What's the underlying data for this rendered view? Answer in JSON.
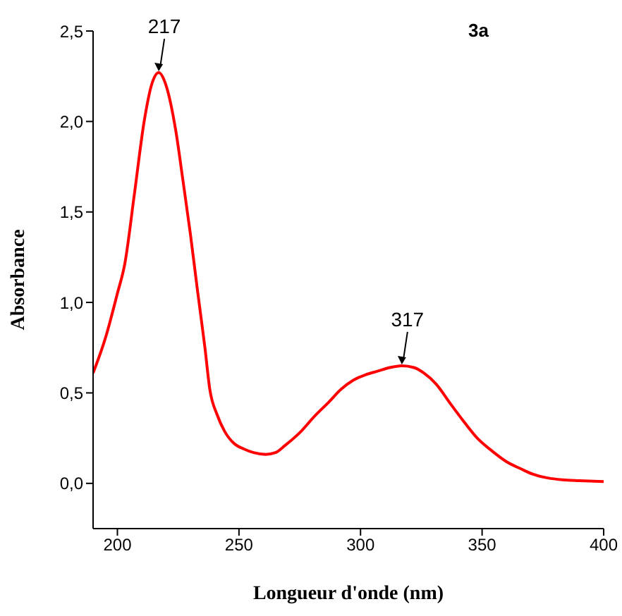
{
  "chart_data": {
    "type": "line",
    "title": "3a",
    "xlabel": "Longueur d'onde (nm)",
    "ylabel": "Absorbance",
    "x": [
      190,
      195,
      200,
      203,
      207,
      211,
      214,
      217,
      220,
      224,
      227,
      230,
      233,
      236,
      238,
      241,
      244,
      248,
      252,
      256,
      261,
      265,
      269,
      275,
      281,
      287,
      292,
      297,
      302,
      307,
      312,
      317,
      322,
      326,
      331,
      337,
      342,
      348,
      354,
      360,
      366,
      371,
      377,
      383,
      390,
      400
    ],
    "series": [
      {
        "color": "#ff0000",
        "values": [
          0.61,
          0.8,
          1.05,
          1.21,
          1.6,
          2.0,
          2.2,
          2.27,
          2.2,
          1.95,
          1.67,
          1.38,
          1.06,
          0.75,
          0.52,
          0.38,
          0.29,
          0.22,
          0.19,
          0.17,
          0.16,
          0.17,
          0.21,
          0.28,
          0.37,
          0.45,
          0.52,
          0.57,
          0.6,
          0.62,
          0.64,
          0.65,
          0.64,
          0.61,
          0.55,
          0.44,
          0.35,
          0.25,
          0.18,
          0.12,
          0.08,
          0.05,
          0.03,
          0.02,
          0.015,
          0.01
        ]
      }
    ],
    "xlim": [
      190,
      400
    ],
    "xticks": [
      200,
      250,
      300,
      350,
      400
    ],
    "ylim": [
      -0.25,
      2.5
    ],
    "yticks": [
      {
        "value": 0,
        "label": "0,0"
      },
      {
        "value": 0.5,
        "label": "0,5"
      },
      {
        "value": 1,
        "label": "1,0"
      },
      {
        "value": 1.5,
        "label": "1,5"
      },
      {
        "value": 2,
        "label": "2,0"
      },
      {
        "value": 2.5,
        "label": "2,5"
      }
    ],
    "annotations": [
      {
        "text": "217",
        "x": 217,
        "y": 2.27
      },
      {
        "text": "317",
        "x": 317,
        "y": 0.65
      }
    ],
    "grid": false,
    "legend": false,
    "marker": "none",
    "line_style": "solid"
  }
}
